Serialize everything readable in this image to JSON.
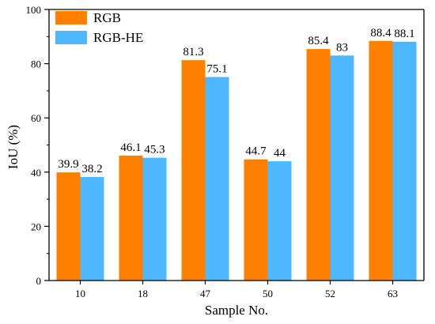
{
  "chart_data": {
    "type": "bar",
    "title": "",
    "xlabel": "Sample No.",
    "ylabel": "IoU (%)",
    "ylim": [
      0,
      100
    ],
    "yticks": [
      0,
      20,
      40,
      60,
      80,
      100
    ],
    "grid": false,
    "legend_position": "top-left",
    "categories": [
      "10",
      "18",
      "47",
      "50",
      "52",
      "63"
    ],
    "series": [
      {
        "name": "RGB",
        "color": "#FF8000",
        "values": [
          39.9,
          46.1,
          81.3,
          44.7,
          85.4,
          88.4
        ],
        "labels": [
          "39.9",
          "46.1",
          "81.3",
          "44.7",
          "85.4",
          "88.4"
        ]
      },
      {
        "name": "RGB-HE",
        "color": "#4DB8FF",
        "values": [
          38.2,
          45.3,
          75.1,
          44,
          83,
          88.1
        ],
        "labels": [
          "38.2",
          "45.3",
          "75.1",
          "44",
          "83",
          "88.1"
        ]
      }
    ]
  }
}
